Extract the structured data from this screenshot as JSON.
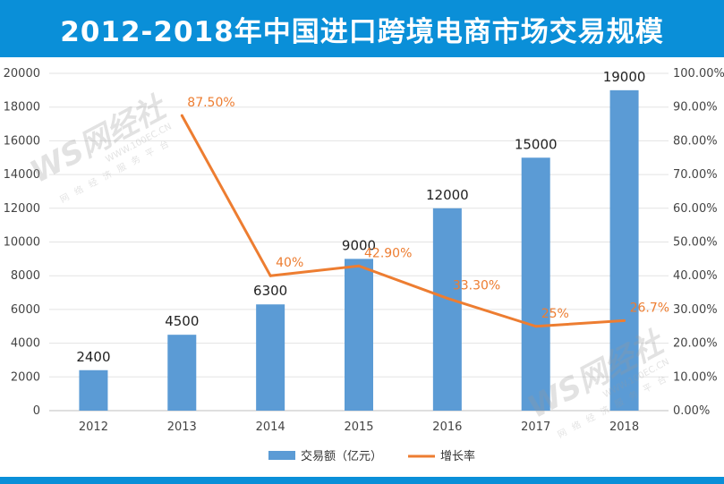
{
  "title": "2012-2018年中国进口跨境电商市场交易规模",
  "watermark": {
    "logo_text": "WS网经社",
    "url_text": "WWW.100EC.CN",
    "tagline": "网络经济服务平台"
  },
  "colors": {
    "banner": "#0a8fd8",
    "bar": "#5b9bd5",
    "line": "#ed7d31"
  },
  "chart_data": {
    "type": "bar",
    "categories": [
      "2012",
      "2013",
      "2014",
      "2015",
      "2016",
      "2017",
      "2018"
    ],
    "series": [
      {
        "name": "交易额（亿元）",
        "type": "bar",
        "axis": "left",
        "values": [
          2400,
          4500,
          6300,
          9000,
          12000,
          15000,
          19000
        ],
        "labels": [
          "2400",
          "4500",
          "6300",
          "9000",
          "12000",
          "15000",
          "19000"
        ]
      },
      {
        "name": "增长率",
        "type": "line",
        "axis": "right",
        "values": [
          null,
          87.5,
          40,
          42.9,
          33.3,
          25,
          26.7
        ],
        "labels": [
          null,
          "87.50%",
          "40%",
          "42.90%",
          "33.30%",
          "25%",
          "26.7%"
        ]
      }
    ],
    "ylim": [
      0,
      20000
    ],
    "yticks": [
      "0",
      "2000",
      "4000",
      "6000",
      "8000",
      "10000",
      "12000",
      "14000",
      "16000",
      "18000",
      "20000"
    ],
    "y2lim": [
      0,
      100
    ],
    "y2ticks": [
      "0.00%",
      "10.00%",
      "20.00%",
      "30.00%",
      "40.00%",
      "50.00%",
      "60.00%",
      "70.00%",
      "80.00%",
      "90.00%",
      "100.00%"
    ],
    "grid": true,
    "legend": "bottom"
  }
}
